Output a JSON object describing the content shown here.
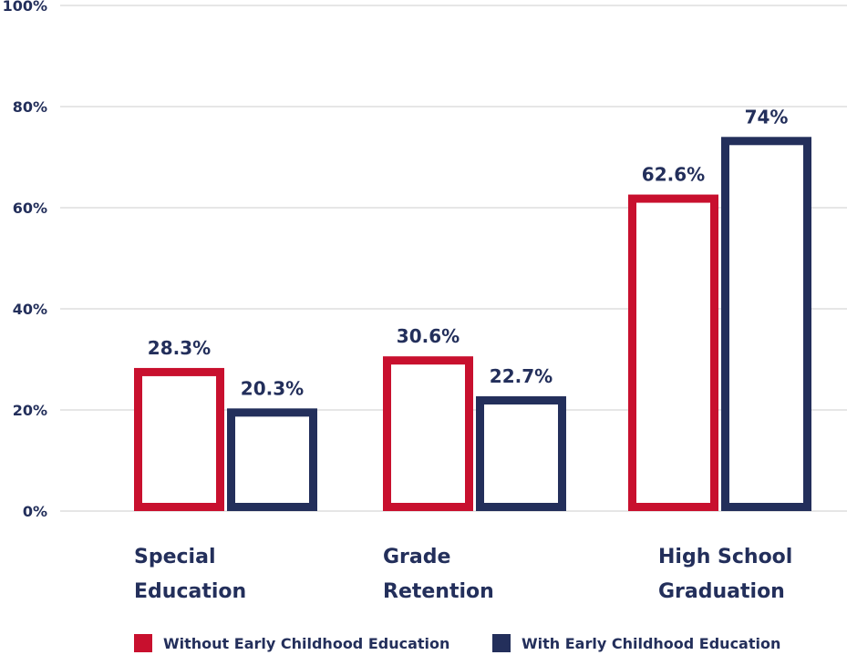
{
  "chart_data": {
    "type": "bar",
    "categories": [
      [
        "Special",
        "Education"
      ],
      [
        "Grade",
        "Retention"
      ],
      [
        "High School",
        "Graduation"
      ]
    ],
    "series": [
      {
        "name": "Without Early Childhood Education",
        "values": [
          28.3,
          30.6,
          62.6
        ],
        "labels": [
          "28.3%",
          "30.6%",
          "62.6%"
        ],
        "color": "#c8102e"
      },
      {
        "name": "With Early Childhood Education",
        "values": [
          20.3,
          22.7,
          74
        ],
        "labels": [
          "20.3%",
          "22.7%",
          "74%"
        ],
        "color": "#232f5b"
      }
    ],
    "yticks": [
      "0%",
      "20%",
      "40%",
      "60%",
      "80%",
      "100%"
    ],
    "ylim": [
      0,
      100
    ],
    "grid": true,
    "legend_position": "bottom",
    "title": "",
    "xlabel": "",
    "ylabel": ""
  }
}
